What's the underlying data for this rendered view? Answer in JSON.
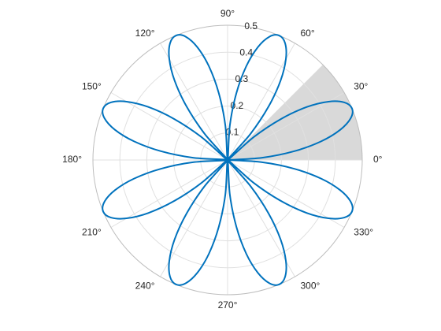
{
  "chart_data": {
    "type": "polar-line",
    "rlim": [
      0,
      0.5
    ],
    "rticks": [
      0.1,
      0.2,
      0.3,
      0.4,
      0.5
    ],
    "thetaticks": [
      {
        "value": 0,
        "label": "0°"
      },
      {
        "value": 30,
        "label": "30°"
      },
      {
        "value": 60,
        "label": "60°"
      },
      {
        "value": 90,
        "label": "90°"
      },
      {
        "value": 120,
        "label": "120°"
      },
      {
        "value": 150,
        "label": "150°"
      },
      {
        "value": 180,
        "label": "180°"
      },
      {
        "value": 210,
        "label": "210°"
      },
      {
        "value": 240,
        "label": "240°"
      },
      {
        "value": 270,
        "label": "270°"
      },
      {
        "value": 300,
        "label": "300°"
      },
      {
        "value": 330,
        "label": "330°"
      }
    ],
    "grid": true,
    "shaded_sector": {
      "theta": [
        0,
        45
      ],
      "color": "#d9d9d9"
    },
    "x": [
      0,
      3.75,
      7.5,
      11.25,
      15,
      18.75,
      22.5,
      26.25,
      30,
      33.75,
      37.5,
      41.25,
      45,
      48.75,
      52.5,
      56.25,
      60,
      63.75,
      67.5,
      71.25,
      75,
      78.75,
      82.5,
      86.25,
      90,
      93.75,
      97.5,
      101.25,
      105,
      108.75,
      112.5,
      116.25,
      120,
      123.75,
      127.5,
      131.25,
      135,
      138.75,
      142.5,
      146.25,
      150,
      153.75,
      157.5,
      161.25,
      165,
      168.75,
      172.5,
      176.25,
      180,
      183.75,
      187.5,
      191.25,
      195,
      198.75,
      202.5,
      206.25,
      210,
      213.75,
      217.5,
      221.25,
      225,
      228.75,
      232.5,
      236.25,
      240,
      243.75,
      247.5,
      251.25,
      255,
      258.75,
      262.5,
      266.25,
      270,
      273.75,
      277.5,
      281.25,
      285,
      288.75,
      292.5,
      296.25,
      300,
      303.75,
      307.5,
      311.25,
      315,
      318.75,
      322.5,
      326.25,
      330,
      333.75,
      337.5,
      341.25,
      345,
      348.75,
      352.5,
      356.25,
      360
    ],
    "series": [
      {
        "color": "#0072bd",
        "values": [
          0,
          0.129,
          0.25,
          0.354,
          0.433,
          0.483,
          0.5,
          0.483,
          0.433,
          0.354,
          0.25,
          0.129,
          0,
          0.129,
          0.25,
          0.354,
          0.433,
          0.483,
          0.5,
          0.483,
          0.433,
          0.354,
          0.25,
          0.129,
          0,
          0.129,
          0.25,
          0.354,
          0.433,
          0.483,
          0.5,
          0.483,
          0.433,
          0.354,
          0.25,
          0.129,
          0,
          0.129,
          0.25,
          0.354,
          0.433,
          0.483,
          0.5,
          0.483,
          0.433,
          0.354,
          0.25,
          0.129,
          0,
          0.129,
          0.25,
          0.354,
          0.433,
          0.483,
          0.5,
          0.483,
          0.433,
          0.354,
          0.25,
          0.129,
          0,
          0.129,
          0.25,
          0.354,
          0.433,
          0.483,
          0.5,
          0.483,
          0.433,
          0.354,
          0.25,
          0.129,
          0,
          0.129,
          0.25,
          0.354,
          0.433,
          0.483,
          0.5,
          0.483,
          0.433,
          0.354,
          0.25,
          0.129,
          0,
          0.129,
          0.25,
          0.354,
          0.433,
          0.483,
          0.5,
          0.483,
          0.433,
          0.354,
          0.25,
          0.129,
          0
        ]
      }
    ]
  }
}
